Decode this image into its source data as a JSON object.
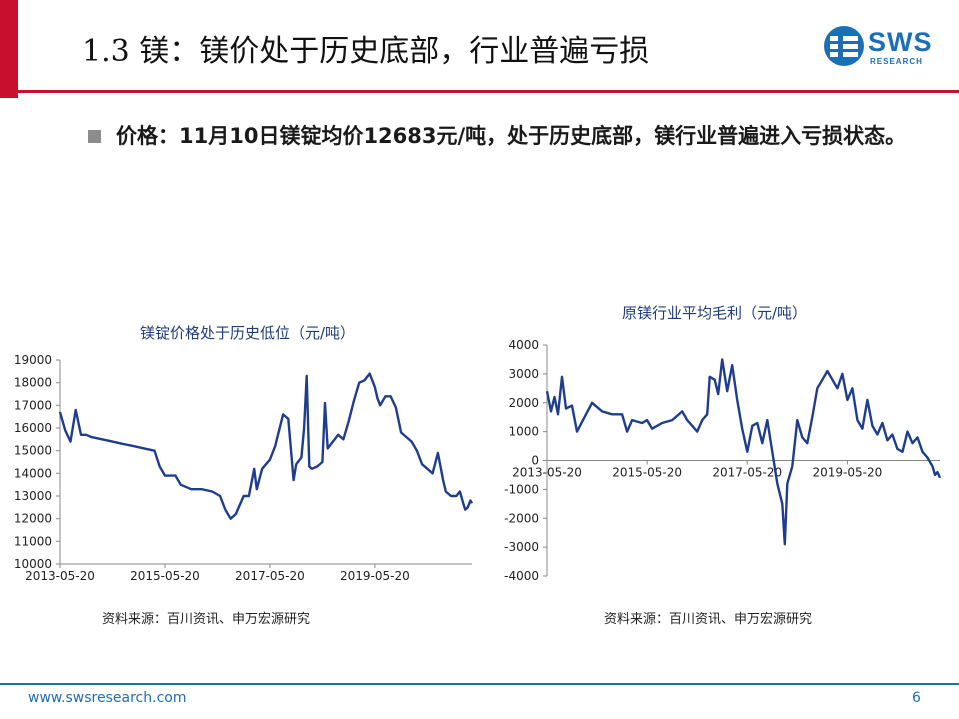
{
  "header": {
    "title": "1.3 镁：镁价处于历史底部，行业普遍亏损"
  },
  "logo": {
    "name": "SWS",
    "sub": "RESEARCH",
    "color": "#1b6fb8"
  },
  "bullet": {
    "text": "价格：11月10日镁锭均价12683元/吨，处于历史底部，镁行业普遍进入亏损状态。"
  },
  "chart_data": [
    {
      "type": "line",
      "title": "镁锭价格处于历史低位（元/吨）",
      "x_ticks": [
        "2013-05-20",
        "2015-05-20",
        "2017-05-20",
        "2019-05-20"
      ],
      "x_range": [
        2013.0,
        2020.85
      ],
      "ylim": [
        10000,
        19000
      ],
      "y_ticks": [
        10000,
        11000,
        12000,
        13000,
        14000,
        15000,
        16000,
        17000,
        18000,
        19000
      ],
      "color": "#1f3d8f",
      "points": [
        [
          2013.0,
          16700
        ],
        [
          2013.1,
          15900
        ],
        [
          2013.2,
          15400
        ],
        [
          2013.3,
          16800
        ],
        [
          2013.4,
          15700
        ],
        [
          2013.5,
          15700
        ],
        [
          2013.6,
          15600
        ],
        [
          2013.8,
          15500
        ],
        [
          2014.0,
          15400
        ],
        [
          2014.2,
          15300
        ],
        [
          2014.4,
          15200
        ],
        [
          2014.6,
          15100
        ],
        [
          2014.8,
          15000
        ],
        [
          2014.9,
          14300
        ],
        [
          2015.0,
          13900
        ],
        [
          2015.2,
          13900
        ],
        [
          2015.3,
          13500
        ],
        [
          2015.5,
          13300
        ],
        [
          2015.7,
          13300
        ],
        [
          2015.9,
          13200
        ],
        [
          2016.05,
          13000
        ],
        [
          2016.15,
          12400
        ],
        [
          2016.25,
          12000
        ],
        [
          2016.35,
          12200
        ],
        [
          2016.5,
          13000
        ],
        [
          2016.6,
          13000
        ],
        [
          2016.7,
          14200
        ],
        [
          2016.75,
          13300
        ],
        [
          2016.85,
          14200
        ],
        [
          2017.0,
          14600
        ],
        [
          2017.1,
          15200
        ],
        [
          2017.25,
          16600
        ],
        [
          2017.35,
          16400
        ],
        [
          2017.45,
          13700
        ],
        [
          2017.5,
          14400
        ],
        [
          2017.6,
          14700
        ],
        [
          2017.65,
          16000
        ],
        [
          2017.7,
          18300
        ],
        [
          2017.75,
          14300
        ],
        [
          2017.8,
          14200
        ],
        [
          2017.9,
          14300
        ],
        [
          2018.0,
          14500
        ],
        [
          2018.05,
          17100
        ],
        [
          2018.1,
          15100
        ],
        [
          2018.2,
          15400
        ],
        [
          2018.3,
          15700
        ],
        [
          2018.4,
          15500
        ],
        [
          2018.5,
          16300
        ],
        [
          2018.6,
          17200
        ],
        [
          2018.7,
          18000
        ],
        [
          2018.8,
          18100
        ],
        [
          2018.9,
          18400
        ],
        [
          2019.0,
          17800
        ],
        [
          2019.05,
          17300
        ],
        [
          2019.1,
          17000
        ],
        [
          2019.2,
          17400
        ],
        [
          2019.3,
          17400
        ],
        [
          2019.4,
          16900
        ],
        [
          2019.5,
          15800
        ],
        [
          2019.6,
          15600
        ],
        [
          2019.7,
          15400
        ],
        [
          2019.8,
          15000
        ],
        [
          2019.9,
          14400
        ],
        [
          2020.0,
          14200
        ],
        [
          2020.1,
          14000
        ],
        [
          2020.2,
          14900
        ],
        [
          2020.3,
          13700
        ],
        [
          2020.35,
          13200
        ],
        [
          2020.45,
          13000
        ],
        [
          2020.55,
          13000
        ],
        [
          2020.62,
          13200
        ],
        [
          2020.68,
          12700
        ],
        [
          2020.72,
          12400
        ],
        [
          2020.77,
          12500
        ],
        [
          2020.82,
          12800
        ],
        [
          2020.85,
          12683
        ]
      ]
    },
    {
      "type": "line",
      "title": "原镁行业平均毛利（元/吨）",
      "x_ticks": [
        "2013-05-20",
        "2015-05-20",
        "2017-05-20",
        "2019-05-20"
      ],
      "x_range": [
        2013.0,
        2020.85
      ],
      "ylim": [
        -4000,
        4000
      ],
      "y_ticks": [
        -4000,
        -3000,
        -2000,
        -1000,
        0,
        1000,
        2000,
        3000,
        4000
      ],
      "color": "#1f3d8f",
      "points": [
        [
          2013.0,
          2400
        ],
        [
          2013.08,
          1700
        ],
        [
          2013.15,
          2200
        ],
        [
          2013.22,
          1600
        ],
        [
          2013.3,
          2900
        ],
        [
          2013.38,
          1800
        ],
        [
          2013.5,
          1900
        ],
        [
          2013.6,
          1000
        ],
        [
          2013.75,
          1500
        ],
        [
          2013.9,
          2000
        ],
        [
          2014.1,
          1700
        ],
        [
          2014.3,
          1600
        ],
        [
          2014.5,
          1600
        ],
        [
          2014.6,
          1000
        ],
        [
          2014.7,
          1400
        ],
        [
          2014.9,
          1300
        ],
        [
          2015.0,
          1400
        ],
        [
          2015.1,
          1100
        ],
        [
          2015.3,
          1300
        ],
        [
          2015.5,
          1400
        ],
        [
          2015.7,
          1700
        ],
        [
          2015.8,
          1400
        ],
        [
          2015.9,
          1200
        ],
        [
          2016.0,
          1000
        ],
        [
          2016.1,
          1400
        ],
        [
          2016.2,
          1600
        ],
        [
          2016.25,
          2900
        ],
        [
          2016.35,
          2800
        ],
        [
          2016.42,
          2300
        ],
        [
          2016.5,
          3500
        ],
        [
          2016.6,
          2400
        ],
        [
          2016.7,
          3300
        ],
        [
          2016.8,
          2100
        ],
        [
          2016.9,
          1100
        ],
        [
          2017.0,
          300
        ],
        [
          2017.1,
          1200
        ],
        [
          2017.2,
          1300
        ],
        [
          2017.3,
          600
        ],
        [
          2017.4,
          1400
        ],
        [
          2017.5,
          300
        ],
        [
          2017.6,
          -800
        ],
        [
          2017.7,
          -1500
        ],
        [
          2017.75,
          -2900
        ],
        [
          2017.8,
          -800
        ],
        [
          2017.9,
          -200
        ],
        [
          2018.0,
          1400
        ],
        [
          2018.1,
          800
        ],
        [
          2018.2,
          600
        ],
        [
          2018.3,
          1500
        ],
        [
          2018.4,
          2500
        ],
        [
          2018.5,
          2800
        ],
        [
          2018.6,
          3100
        ],
        [
          2018.7,
          2800
        ],
        [
          2018.8,
          2500
        ],
        [
          2018.9,
          3000
        ],
        [
          2019.0,
          2100
        ],
        [
          2019.1,
          2500
        ],
        [
          2019.2,
          1400
        ],
        [
          2019.3,
          1100
        ],
        [
          2019.4,
          2100
        ],
        [
          2019.5,
          1200
        ],
        [
          2019.6,
          900
        ],
        [
          2019.7,
          1300
        ],
        [
          2019.8,
          700
        ],
        [
          2019.9,
          900
        ],
        [
          2020.0,
          400
        ],
        [
          2020.1,
          300
        ],
        [
          2020.2,
          1000
        ],
        [
          2020.3,
          600
        ],
        [
          2020.4,
          800
        ],
        [
          2020.5,
          300
        ],
        [
          2020.6,
          100
        ],
        [
          2020.7,
          -200
        ],
        [
          2020.75,
          -500
        ],
        [
          2020.8,
          -400
        ],
        [
          2020.85,
          -600
        ]
      ]
    }
  ],
  "sources": [
    "资料来源：百川资讯、申万宏源研究",
    "资料来源：百川资讯、申万宏源研究"
  ],
  "footer": {
    "url": "www.swsresearch.com",
    "page": "6"
  }
}
